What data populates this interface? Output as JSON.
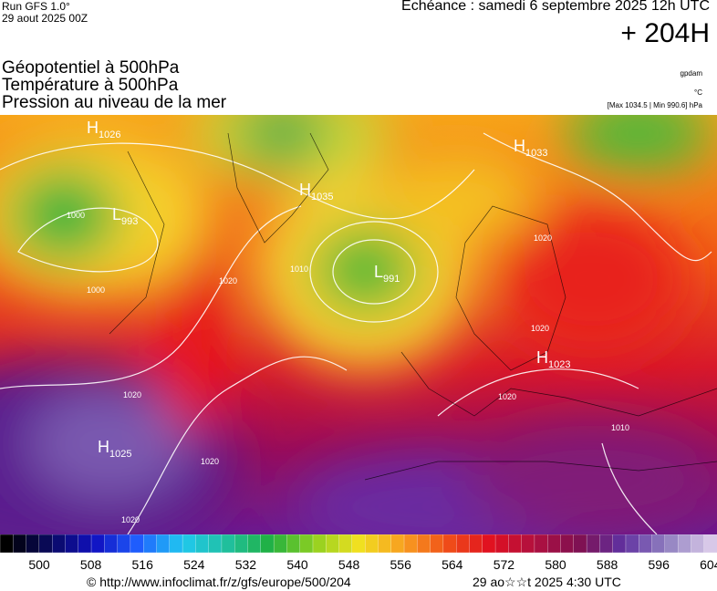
{
  "header": {
    "run": "Run GFS 1.0°",
    "date": "29 aout 2025 00Z",
    "echeance": "Echéance : samedi 6 septembre 2025 12h UTC",
    "lead": "+ 204H"
  },
  "layers": [
    "Géopotentiel à 500hPa",
    "Température à 500hPa",
    "Pression au niveau de la mer"
  ],
  "units": [
    "gpdam",
    "°C",
    "[Max 1034.5 | Min 990.6] hPa"
  ],
  "centers": [
    {
      "kind": "H",
      "value": "1026"
    },
    {
      "kind": "H",
      "value": "1033"
    },
    {
      "kind": "H",
      "value": "1035"
    },
    {
      "kind": "L",
      "value": "993"
    },
    {
      "kind": "L",
      "value": "991"
    },
    {
      "kind": "H",
      "value": "1023"
    },
    {
      "kind": "H",
      "value": "1025"
    }
  ],
  "isobar_labels": [
    "1000",
    "1000",
    "1010",
    "1020",
    "1020",
    "1020",
    "1020",
    "1020",
    "1020",
    "1020",
    "1010"
  ],
  "colorbar_labels": [
    "500",
    "508",
    "516",
    "524",
    "532",
    "540",
    "548",
    "556",
    "564",
    "572",
    "580",
    "588",
    "596",
    "604"
  ],
  "footer": {
    "url": "© http://www.infoclimat.fr/z/gfs/europe/500/204",
    "time": "29 ao☆☆t 2025  4:30 UTC"
  }
}
